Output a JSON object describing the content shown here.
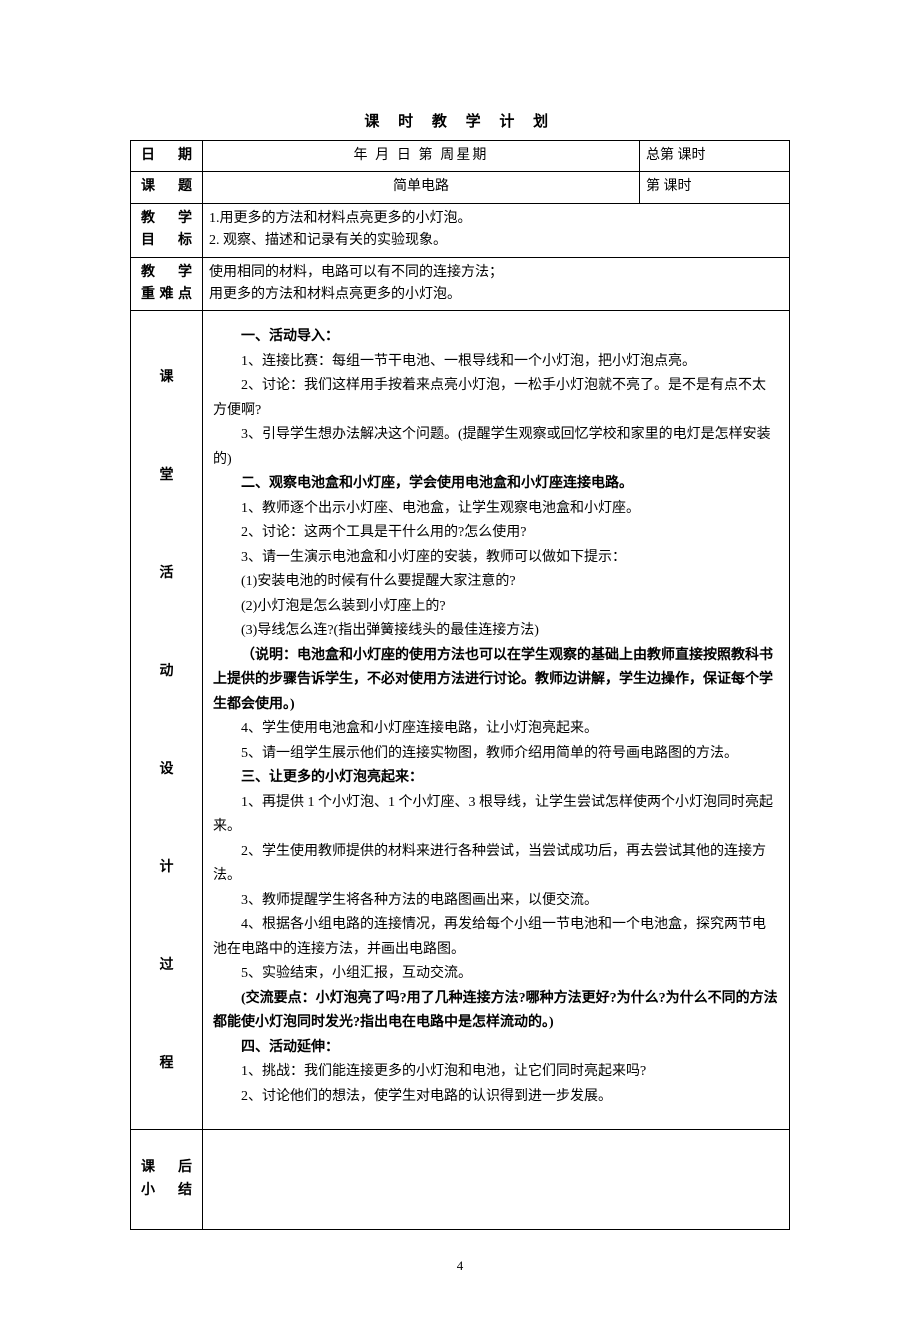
{
  "page": {
    "title": "课 时 教 学 计 划",
    "number": "4"
  },
  "header": {
    "date_label": "日  期",
    "date_value": "年    月    日       第     周星期",
    "total_label": "总第      课时",
    "topic_label": "课  题",
    "topic_value": "简单电路",
    "period_label": "第       课时",
    "objective_label_l1": "教  学",
    "objective_label_l2": "目  标",
    "objective_l1": "1.用更多的方法和材料点亮更多的小灯泡。",
    "objective_l2": "2. 观察、描述和记录有关的实验现象。",
    "keypoint_label_l1": "教  学",
    "keypoint_label_l2": "重难点",
    "keypoint_l1": "使用相同的材料，电路可以有不同的连接方法；",
    "keypoint_l2": "用更多的方法和材料点亮更多的小灯泡。"
  },
  "sidebar": {
    "process_label": "课\n\n堂\n\n活\n\n动\n\n设\n\n计\n\n过\n\n程",
    "summary_label_l1": "课  后",
    "summary_label_l2": "小  结"
  },
  "content": {
    "s1_title": "一、活动导入：",
    "s1_p1": "1、连接比赛：每组一节干电池、一根导线和一个小灯泡，把小灯泡点亮。",
    "s1_p2": "2、讨论：我们这样用手按着来点亮小灯泡，一松手小灯泡就不亮了。是不是有点不太方便啊?",
    "s1_p3": "3、引导学生想办法解决这个问题。(提醒学生观察或回忆学校和家里的电灯是怎样安装的)",
    "s2_title": "二、观察电池盒和小灯座，学会使用电池盒和小灯座连接电路。",
    "s2_p1": "1、教师逐个出示小灯座、电池盒，让学生观察电池盒和小灯座。",
    "s2_p2": "2、讨论：这两个工具是干什么用的?怎么使用?",
    "s2_p3": "3、请一生演示电池盒和小灯座的安装，教师可以做如下提示：",
    "s2_p3a": "(1)安装电池的时候有什么要提醒大家注意的?",
    "s2_p3b": "(2)小灯泡是怎么装到小灯座上的?",
    "s2_p3c": "(3)导线怎么连?(指出弹簧接线头的最佳连接方法)",
    "s2_note": "（说明：电池盒和小灯座的使用方法也可以在学生观察的基础上由教师直接按照教科书上提供的步骤告诉学生，不必对使用方法进行讨论。教师边讲解，学生边操作，保证每个学生都会使用。)",
    "s2_p4": "4、学生使用电池盒和小灯座连接电路，让小灯泡亮起来。",
    "s2_p5": "5、请一组学生展示他们的连接实物图，教师介绍用简单的符号画电路图的方法。",
    "s3_title": "三、让更多的小灯泡亮起来：",
    "s3_p1": "1、再提供 1 个小灯泡、1 个小灯座、3 根导线，让学生尝试怎样使两个小灯泡同时亮起来。",
    "s3_p2": "2、学生使用教师提供的材料来进行各种尝试，当尝试成功后，再去尝试其他的连接方法。",
    "s3_p3": "3、教师提醒学生将各种方法的电路图画出来，以便交流。",
    "s3_p4": "4、根据各小组电路的连接情况，再发给每个小组一节电池和一个电池盒，探究两节电池在电路中的连接方法，并画出电路图。",
    "s3_p5": "5、实验结束，小组汇报，互动交流。",
    "s3_note": "(交流要点：小灯泡亮了吗?用了几种连接方法?哪种方法更好?为什么?为什么不同的方法都能使小灯泡同时发光?指出电在电路中是怎样流动的。)",
    "s4_title": "四、活动延伸：",
    "s4_p1": "1、挑战：我们能连接更多的小灯泡和电池，让它们同时亮起来吗?",
    "s4_p2": "2、讨论他们的想法，使学生对电路的认识得到进一步发展。"
  }
}
